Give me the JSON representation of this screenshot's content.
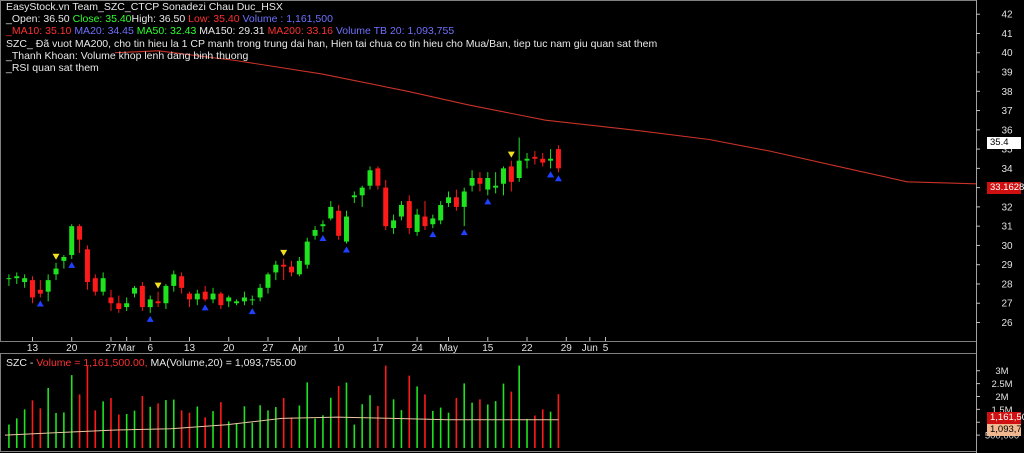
{
  "header": {
    "title": "EasyStock.vn Team_SZC_CTCP Sonadezi Chau Duc_HSX",
    "open_label": "_Open: 36.50",
    "close_label": "Close: 35.40",
    "high_label": "High: 36.50",
    "low_label": "Low: 35.40",
    "volume_label": "Volume : 1,161,500",
    "ma10_label": "_MA10: 35.10",
    "ma20_label": "MA20: 34.45",
    "ma50_label": "MA50: 32.43",
    "ma150_label": "MA150: 29.31",
    "ma200_label": "MA200: 33.16",
    "volume_tb20_label": "Volume TB 20:  1,093,755",
    "note1": "SZC_ Đã vuot MA200, cho tin hieu la 1 CP manh trong trung dai han, Hien tai chua co tin hieu cho Mua/Ban, tiep tuc nam giu quan sat them",
    "note2": "_Thanh Khoan: Volume khop lenh dang binh thuong",
    "note3": "_RSI quan sat them"
  },
  "volume_header": {
    "symbol": "SZC - ",
    "volume_text": "Volume = 1,161,500.00, ",
    "ma_text": "MA(Volume,20) = 1,093,755.00"
  },
  "tags": {
    "last_price": "35.4",
    "ma200": "33.1628",
    "last_volume": "1,161,50",
    "ma_volume": "1,093,75"
  },
  "colors": {
    "up": "#1ee31e",
    "down": "#ff1a1a",
    "ma200_line": "#c83228",
    "buy_arrow": "#2040ff",
    "sell_arrow": "#f0e020",
    "vol_ma_line": "#e8c8a0",
    "panel_border": "#808080"
  },
  "chart_data": [
    {
      "type": "candlestick",
      "title": "EasyStock.vn Team_SZC_CTCP Sonadezi Chau Duc_HSX",
      "ylim": [
        25.3,
        42.4
      ],
      "y_ticks": [
        26,
        27,
        28,
        29,
        30,
        31,
        32,
        33,
        34,
        35,
        36,
        37,
        38,
        39,
        40,
        41,
        42
      ],
      "x_tick_labels": [
        "13",
        "20",
        "27",
        "Mar",
        "6",
        "13",
        "20",
        "27",
        "Apr",
        "10",
        "17",
        "24",
        "May",
        "15",
        "22",
        "29",
        "Jun",
        "5"
      ],
      "x_tick_bars": [
        3,
        8,
        13,
        15,
        18,
        23,
        28,
        33,
        37,
        42,
        47,
        52,
        56,
        61,
        66,
        71,
        74,
        76
      ],
      "candles": [
        {
          "o": 28.3,
          "h": 28.5,
          "l": 27.9,
          "c": 28.3
        },
        {
          "o": 28.3,
          "h": 28.6,
          "l": 28.0,
          "c": 28.4
        },
        {
          "o": 28.1,
          "h": 28.5,
          "l": 27.8,
          "c": 28.3
        },
        {
          "o": 28.2,
          "h": 28.4,
          "l": 27.0,
          "c": 27.3
        },
        {
          "o": 27.7,
          "h": 28.2,
          "l": 27.3,
          "c": 27.5
        },
        {
          "o": 27.6,
          "h": 28.5,
          "l": 27.1,
          "c": 28.2
        },
        {
          "o": 28.5,
          "h": 29.1,
          "l": 28.2,
          "c": 28.8
        },
        {
          "o": 29.2,
          "h": 29.5,
          "l": 28.8,
          "c": 29.4
        },
        {
          "o": 29.5,
          "h": 31.1,
          "l": 29.3,
          "c": 31.0
        },
        {
          "o": 31.0,
          "h": 31.1,
          "l": 29.6,
          "c": 30.3
        },
        {
          "o": 29.8,
          "h": 30.0,
          "l": 27.7,
          "c": 28.1
        },
        {
          "o": 28.3,
          "h": 28.5,
          "l": 27.4,
          "c": 27.6
        },
        {
          "o": 27.6,
          "h": 28.6,
          "l": 27.4,
          "c": 28.3
        },
        {
          "o": 27.3,
          "h": 27.7,
          "l": 26.6,
          "c": 27.0
        },
        {
          "o": 27.0,
          "h": 27.4,
          "l": 26.5,
          "c": 26.7
        },
        {
          "o": 26.8,
          "h": 27.3,
          "l": 26.6,
          "c": 27.0
        },
        {
          "o": 27.5,
          "h": 27.9,
          "l": 27.3,
          "c": 27.8
        },
        {
          "o": 27.9,
          "h": 28.1,
          "l": 26.6,
          "c": 26.8
        },
        {
          "o": 26.8,
          "h": 27.4,
          "l": 26.5,
          "c": 27.2
        },
        {
          "o": 27.1,
          "h": 27.6,
          "l": 26.8,
          "c": 27.0
        },
        {
          "o": 27.0,
          "h": 28.0,
          "l": 26.7,
          "c": 27.9
        },
        {
          "o": 27.9,
          "h": 28.7,
          "l": 27.6,
          "c": 28.5
        },
        {
          "o": 28.4,
          "h": 28.6,
          "l": 27.5,
          "c": 27.8
        },
        {
          "o": 27.5,
          "h": 27.6,
          "l": 26.8,
          "c": 27.2
        },
        {
          "o": 27.2,
          "h": 27.7,
          "l": 26.9,
          "c": 27.5
        },
        {
          "o": 27.6,
          "h": 27.9,
          "l": 27.1,
          "c": 27.2
        },
        {
          "o": 27.2,
          "h": 27.8,
          "l": 27.0,
          "c": 27.5
        },
        {
          "o": 27.5,
          "h": 27.6,
          "l": 26.7,
          "c": 26.9
        },
        {
          "o": 27.1,
          "h": 27.4,
          "l": 26.8,
          "c": 27.3
        },
        {
          "o": 27.0,
          "h": 27.2,
          "l": 26.9,
          "c": 27.1
        },
        {
          "o": 27.1,
          "h": 27.6,
          "l": 26.9,
          "c": 27.3
        },
        {
          "o": 27.2,
          "h": 27.4,
          "l": 26.9,
          "c": 27.2
        },
        {
          "o": 27.3,
          "h": 28.0,
          "l": 27.1,
          "c": 27.8
        },
        {
          "o": 27.8,
          "h": 28.6,
          "l": 27.5,
          "c": 28.5
        },
        {
          "o": 28.6,
          "h": 29.2,
          "l": 28.2,
          "c": 29.0
        },
        {
          "o": 29.0,
          "h": 29.3,
          "l": 28.2,
          "c": 28.9
        },
        {
          "o": 28.9,
          "h": 29.2,
          "l": 28.4,
          "c": 28.6
        },
        {
          "o": 28.5,
          "h": 29.4,
          "l": 28.4,
          "c": 29.2
        },
        {
          "o": 29.0,
          "h": 30.4,
          "l": 28.8,
          "c": 30.2
        },
        {
          "o": 30.5,
          "h": 31.0,
          "l": 30.3,
          "c": 30.8
        },
        {
          "o": 31.0,
          "h": 31.3,
          "l": 30.7,
          "c": 31.1
        },
        {
          "o": 31.4,
          "h": 32.3,
          "l": 31.3,
          "c": 32.0
        },
        {
          "o": 31.8,
          "h": 32.1,
          "l": 30.3,
          "c": 30.5
        },
        {
          "o": 30.2,
          "h": 31.8,
          "l": 30.1,
          "c": 31.5
        },
        {
          "o": 32.5,
          "h": 32.8,
          "l": 32.2,
          "c": 32.6
        },
        {
          "o": 32.6,
          "h": 33.1,
          "l": 32.0,
          "c": 33.0
        },
        {
          "o": 33.1,
          "h": 34.1,
          "l": 32.9,
          "c": 33.9
        },
        {
          "o": 34.0,
          "h": 34.1,
          "l": 32.9,
          "c": 33.1
        },
        {
          "o": 33.0,
          "h": 33.4,
          "l": 30.8,
          "c": 31.0
        },
        {
          "o": 30.9,
          "h": 31.6,
          "l": 30.6,
          "c": 31.3
        },
        {
          "o": 31.5,
          "h": 32.3,
          "l": 31.3,
          "c": 32.1
        },
        {
          "o": 32.3,
          "h": 32.6,
          "l": 30.6,
          "c": 30.9
        },
        {
          "o": 30.7,
          "h": 31.9,
          "l": 30.5,
          "c": 31.6
        },
        {
          "o": 31.5,
          "h": 32.3,
          "l": 30.8,
          "c": 31.0
        },
        {
          "o": 31.1,
          "h": 31.6,
          "l": 30.9,
          "c": 31.4
        },
        {
          "o": 31.3,
          "h": 32.3,
          "l": 31.1,
          "c": 32.1
        },
        {
          "o": 32.2,
          "h": 32.8,
          "l": 32.0,
          "c": 32.5
        },
        {
          "o": 32.5,
          "h": 32.9,
          "l": 31.8,
          "c": 32.0
        },
        {
          "o": 32.0,
          "h": 33.0,
          "l": 31.0,
          "c": 32.8
        },
        {
          "o": 33.1,
          "h": 33.9,
          "l": 32.8,
          "c": 33.5
        },
        {
          "o": 33.5,
          "h": 33.8,
          "l": 32.8,
          "c": 33.2
        },
        {
          "o": 32.9,
          "h": 33.8,
          "l": 32.6,
          "c": 33.5
        },
        {
          "o": 33.0,
          "h": 33.8,
          "l": 32.7,
          "c": 33.1
        },
        {
          "o": 33.2,
          "h": 34.1,
          "l": 32.6,
          "c": 34.0
        },
        {
          "o": 34.1,
          "h": 34.4,
          "l": 32.8,
          "c": 33.3
        },
        {
          "o": 33.5,
          "h": 35.6,
          "l": 33.3,
          "c": 34.4
        },
        {
          "o": 34.4,
          "h": 34.8,
          "l": 34.0,
          "c": 34.5
        },
        {
          "o": 34.6,
          "h": 34.9,
          "l": 34.2,
          "c": 34.5
        },
        {
          "o": 34.5,
          "h": 34.8,
          "l": 34.1,
          "c": 34.3
        },
        {
          "o": 34.4,
          "h": 35.0,
          "l": 34.0,
          "c": 34.5
        },
        {
          "o": 35.0,
          "h": 35.2,
          "l": 33.8,
          "c": 34.0
        }
      ],
      "arrows_buy": [
        6,
        11,
        25,
        35,
        44,
        57,
        62,
        77,
        83,
        87,
        98,
        99,
        100
      ],
      "arrows_sell": [
        9,
        27,
        50,
        92
      ],
      "ma200_points": [
        [
          0,
          40.0
        ],
        [
          5,
          40.1
        ],
        [
          14,
          39.6
        ],
        [
          24,
          38.9
        ],
        [
          34,
          38.0
        ],
        [
          41,
          37.3
        ],
        [
          50,
          36.5
        ],
        [
          60,
          36.0
        ],
        [
          69,
          35.5
        ],
        [
          76,
          34.9
        ],
        [
          86,
          33.9
        ],
        [
          92,
          33.3
        ],
        [
          100,
          33.2
        ]
      ]
    },
    {
      "type": "bar",
      "title": "SZC - Volume = 1,161,500.00, MA(Volume,20) = 1,093,755.00",
      "ylim": [
        0,
        3300000
      ],
      "y_ticks": [
        500000,
        1000000,
        1500000,
        2000000,
        2500000,
        3000000
      ],
      "y_tick_labels": [
        "500,000",
        "1M",
        "1.5M",
        "2M",
        "2.5M",
        "3M"
      ],
      "volume_ma_points": [
        [
          0,
          500000
        ],
        [
          10,
          600000
        ],
        [
          20,
          700000
        ],
        [
          30,
          750000
        ],
        [
          40,
          900000
        ],
        [
          50,
          1150000
        ],
        [
          60,
          1200000
        ],
        [
          70,
          1150000
        ],
        [
          80,
          1100000
        ],
        [
          90,
          1100000
        ],
        [
          100,
          1093755
        ]
      ]
    }
  ]
}
